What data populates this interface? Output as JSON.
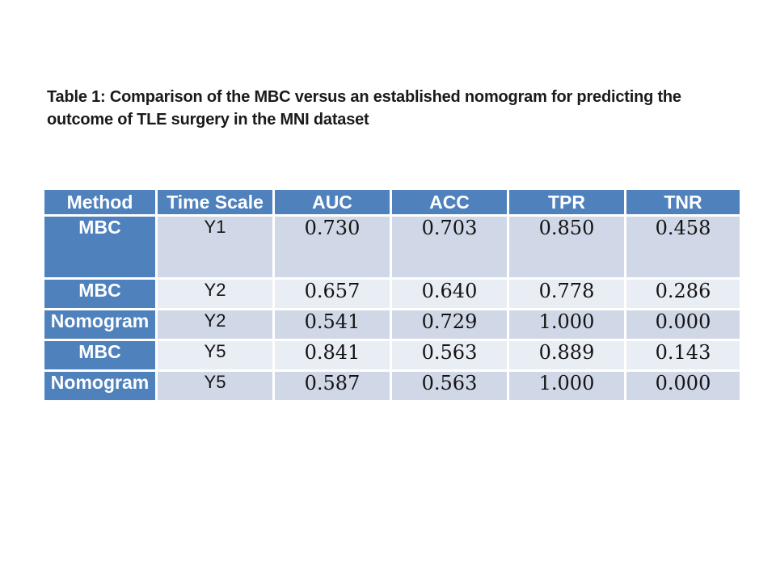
{
  "slide": {
    "title": "Table 1: Comparison of the MBC versus an established nomogram for predicting the outcome of TLE surgery in the MNI dataset"
  },
  "table": {
    "columns": [
      "Method",
      "Time Scale",
      "AUC",
      "ACC",
      "TPR",
      "TNR"
    ],
    "rows": [
      [
        "MBC",
        "Y1",
        "0.730",
        "0.703",
        "0.850",
        "0.458"
      ],
      [
        "MBC",
        "Y2",
        "0.657",
        "0.640",
        "0.778",
        "0.286"
      ],
      [
        "Nomogram",
        "Y2",
        "0.541",
        "0.729",
        "1.000",
        "0.000"
      ],
      [
        "MBC",
        "Y5",
        "0.841",
        "0.563",
        "0.889",
        "0.143"
      ],
      [
        "Nomogram",
        "Y5",
        "0.587",
        "0.563",
        "1.000",
        "0.000"
      ]
    ]
  },
  "colors": {
    "accent_blue": "#4f81bd",
    "band_dark": "#d0d7e6",
    "band_light": "#e9edf4",
    "cell_border": "#ffffff",
    "title_text": "#1a1a1a",
    "body_text": "#141414",
    "header_text": "#ffffff",
    "background": "#ffffff"
  }
}
